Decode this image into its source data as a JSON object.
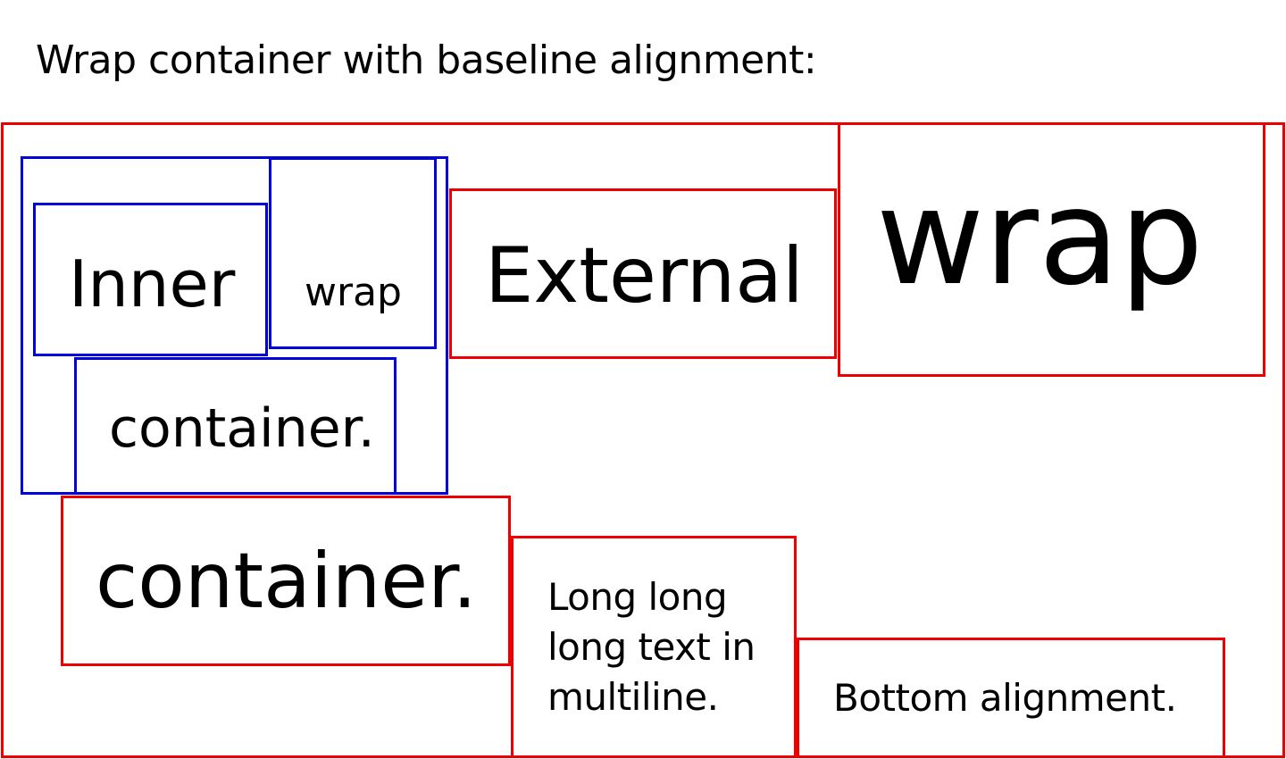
{
  "heading": "Wrap container with baseline alignment:",
  "colors": {
    "outer_border": "#ee0000",
    "inner_border": "#0000dd",
    "text": "#000000",
    "background": "#ffffff"
  },
  "inner_container": {
    "items": [
      "Inner",
      "wrap",
      "container."
    ]
  },
  "outer_items": {
    "external": "External",
    "wrap": "wrap",
    "container": "container.",
    "long_text": "Long long\nlong text in\nmultiline.",
    "bottom": "Bottom alignment."
  }
}
